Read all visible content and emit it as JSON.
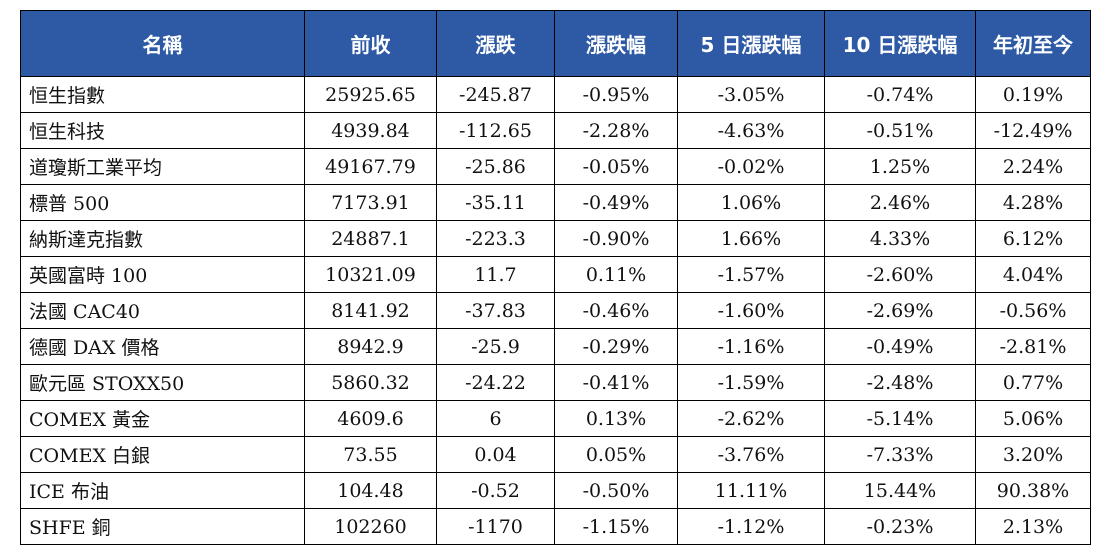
{
  "headers": [
    "名稱",
    "前收",
    "漲跌",
    "漲跌幅",
    "5 日漲跌幅",
    "10 日漲跌幅",
    "年初至今"
  ],
  "rows": [
    [
      "恒生指數",
      "25925.65",
      "-245.87",
      "-0.95%",
      "-3.05%",
      "-0.74%",
      "0.19%"
    ],
    [
      "恒生科技",
      "4939.84",
      "-112.65",
      "-2.28%",
      "-4.63%",
      "-0.51%",
      "-12.49%"
    ],
    [
      "道瓊斯工業平均",
      "49167.79",
      "-25.86",
      "-0.05%",
      "-0.02%",
      "1.25%",
      "2.24%"
    ],
    [
      "標普 500",
      "7173.91",
      "-35.11",
      "-0.49%",
      "1.06%",
      "2.46%",
      "4.28%"
    ],
    [
      "納斯達克指數",
      "24887.1",
      "-223.3",
      "-0.90%",
      "1.66%",
      "4.33%",
      "6.12%"
    ],
    [
      "英國富時 100",
      "10321.09",
      "11.7",
      "0.11%",
      "-1.57%",
      "-2.60%",
      "4.04%"
    ],
    [
      "法國 CAC40",
      "8141.92",
      "-37.83",
      "-0.46%",
      "-1.60%",
      "-2.69%",
      "-0.56%"
    ],
    [
      "德國 DAX 價格",
      "8942.9",
      "-25.9",
      "-0.29%",
      "-1.16%",
      "-0.49%",
      "-2.81%"
    ],
    [
      "歐元區 STOXX50",
      "5860.32",
      "-24.22",
      "-0.41%",
      "-1.59%",
      "-2.48%",
      "0.77%"
    ],
    [
      "COMEX 黃金",
      "4609.6",
      "6",
      "0.13%",
      "-2.62%",
      "-5.14%",
      "5.06%"
    ],
    [
      "COMEX 白銀",
      "73.55",
      "0.04",
      "0.05%",
      "-3.76%",
      "-7.33%",
      "3.20%"
    ],
    [
      "ICE 布油",
      "104.48",
      "-0.52",
      "-0.50%",
      "11.11%",
      "15.44%",
      "90.38%"
    ],
    [
      "SHFE 銅",
      "102260",
      "-1170",
      "-1.15%",
      "-1.12%",
      "-0.23%",
      "2.13%"
    ]
  ],
  "colors": {
    "header_bg": "#2e5aa5",
    "header_text": "#ffffff",
    "border": "#000000"
  }
}
